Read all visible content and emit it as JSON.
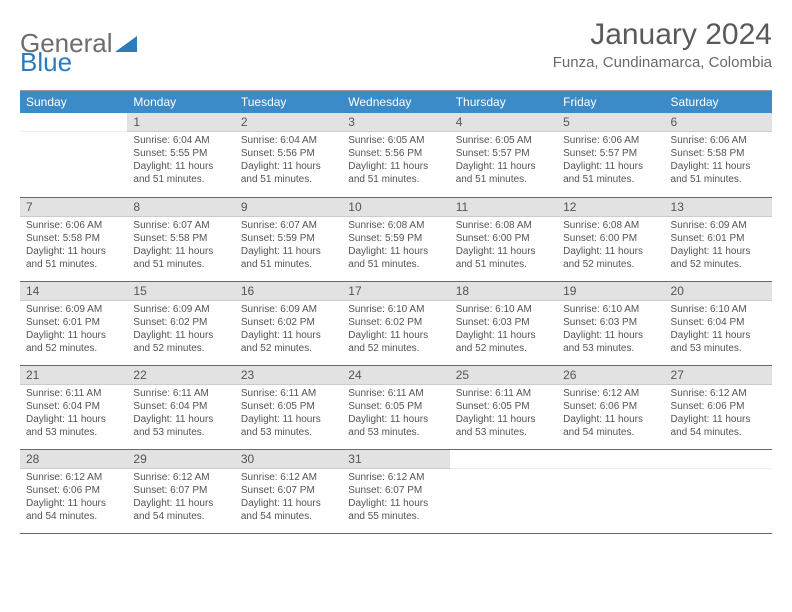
{
  "brand": {
    "part1": "General",
    "part2": "Blue"
  },
  "title": "January 2024",
  "location": "Funza, Cundinamarca, Colombia",
  "day_headers": [
    "Sunday",
    "Monday",
    "Tuesday",
    "Wednesday",
    "Thursday",
    "Friday",
    "Saturday"
  ],
  "colors": {
    "header_bg": "#3b8bc9",
    "header_text": "#ffffff",
    "daynum_bg": "#e2e2e2",
    "border": "#6a6a6a",
    "logo_gray": "#6d6d6d",
    "logo_blue": "#2b7bbd"
  },
  "weeks": [
    [
      null,
      {
        "n": "1",
        "sunrise": "6:04 AM",
        "sunset": "5:55 PM",
        "daylight": "11 hours and 51 minutes."
      },
      {
        "n": "2",
        "sunrise": "6:04 AM",
        "sunset": "5:56 PM",
        "daylight": "11 hours and 51 minutes."
      },
      {
        "n": "3",
        "sunrise": "6:05 AM",
        "sunset": "5:56 PM",
        "daylight": "11 hours and 51 minutes."
      },
      {
        "n": "4",
        "sunrise": "6:05 AM",
        "sunset": "5:57 PM",
        "daylight": "11 hours and 51 minutes."
      },
      {
        "n": "5",
        "sunrise": "6:06 AM",
        "sunset": "5:57 PM",
        "daylight": "11 hours and 51 minutes."
      },
      {
        "n": "6",
        "sunrise": "6:06 AM",
        "sunset": "5:58 PM",
        "daylight": "11 hours and 51 minutes."
      }
    ],
    [
      {
        "n": "7",
        "sunrise": "6:06 AM",
        "sunset": "5:58 PM",
        "daylight": "11 hours and 51 minutes."
      },
      {
        "n": "8",
        "sunrise": "6:07 AM",
        "sunset": "5:58 PM",
        "daylight": "11 hours and 51 minutes."
      },
      {
        "n": "9",
        "sunrise": "6:07 AM",
        "sunset": "5:59 PM",
        "daylight": "11 hours and 51 minutes."
      },
      {
        "n": "10",
        "sunrise": "6:08 AM",
        "sunset": "5:59 PM",
        "daylight": "11 hours and 51 minutes."
      },
      {
        "n": "11",
        "sunrise": "6:08 AM",
        "sunset": "6:00 PM",
        "daylight": "11 hours and 51 minutes."
      },
      {
        "n": "12",
        "sunrise": "6:08 AM",
        "sunset": "6:00 PM",
        "daylight": "11 hours and 52 minutes."
      },
      {
        "n": "13",
        "sunrise": "6:09 AM",
        "sunset": "6:01 PM",
        "daylight": "11 hours and 52 minutes."
      }
    ],
    [
      {
        "n": "14",
        "sunrise": "6:09 AM",
        "sunset": "6:01 PM",
        "daylight": "11 hours and 52 minutes."
      },
      {
        "n": "15",
        "sunrise": "6:09 AM",
        "sunset": "6:02 PM",
        "daylight": "11 hours and 52 minutes."
      },
      {
        "n": "16",
        "sunrise": "6:09 AM",
        "sunset": "6:02 PM",
        "daylight": "11 hours and 52 minutes."
      },
      {
        "n": "17",
        "sunrise": "6:10 AM",
        "sunset": "6:02 PM",
        "daylight": "11 hours and 52 minutes."
      },
      {
        "n": "18",
        "sunrise": "6:10 AM",
        "sunset": "6:03 PM",
        "daylight": "11 hours and 52 minutes."
      },
      {
        "n": "19",
        "sunrise": "6:10 AM",
        "sunset": "6:03 PM",
        "daylight": "11 hours and 53 minutes."
      },
      {
        "n": "20",
        "sunrise": "6:10 AM",
        "sunset": "6:04 PM",
        "daylight": "11 hours and 53 minutes."
      }
    ],
    [
      {
        "n": "21",
        "sunrise": "6:11 AM",
        "sunset": "6:04 PM",
        "daylight": "11 hours and 53 minutes."
      },
      {
        "n": "22",
        "sunrise": "6:11 AM",
        "sunset": "6:04 PM",
        "daylight": "11 hours and 53 minutes."
      },
      {
        "n": "23",
        "sunrise": "6:11 AM",
        "sunset": "6:05 PM",
        "daylight": "11 hours and 53 minutes."
      },
      {
        "n": "24",
        "sunrise": "6:11 AM",
        "sunset": "6:05 PM",
        "daylight": "11 hours and 53 minutes."
      },
      {
        "n": "25",
        "sunrise": "6:11 AM",
        "sunset": "6:05 PM",
        "daylight": "11 hours and 53 minutes."
      },
      {
        "n": "26",
        "sunrise": "6:12 AM",
        "sunset": "6:06 PM",
        "daylight": "11 hours and 54 minutes."
      },
      {
        "n": "27",
        "sunrise": "6:12 AM",
        "sunset": "6:06 PM",
        "daylight": "11 hours and 54 minutes."
      }
    ],
    [
      {
        "n": "28",
        "sunrise": "6:12 AM",
        "sunset": "6:06 PM",
        "daylight": "11 hours and 54 minutes."
      },
      {
        "n": "29",
        "sunrise": "6:12 AM",
        "sunset": "6:07 PM",
        "daylight": "11 hours and 54 minutes."
      },
      {
        "n": "30",
        "sunrise": "6:12 AM",
        "sunset": "6:07 PM",
        "daylight": "11 hours and 54 minutes."
      },
      {
        "n": "31",
        "sunrise": "6:12 AM",
        "sunset": "6:07 PM",
        "daylight": "11 hours and 55 minutes."
      },
      null,
      null,
      null
    ]
  ],
  "labels": {
    "sunrise": "Sunrise: ",
    "sunset": "Sunset: ",
    "daylight": "Daylight: "
  }
}
